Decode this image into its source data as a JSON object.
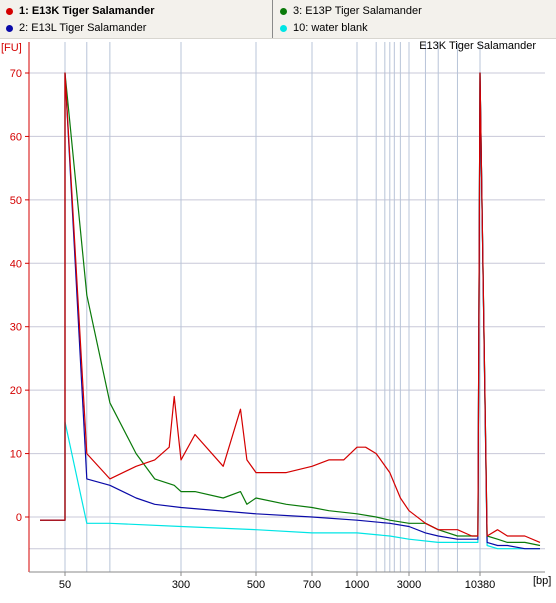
{
  "legend": [
    {
      "label": "1: E13K Tiger Salamander",
      "color": "#d40000",
      "bold": true
    },
    {
      "label": "2: E13L Tiger Salamander",
      "color": "#0a0aa8",
      "bold": false
    },
    {
      "label": "3: E13P Tiger Salamander",
      "color": "#0a7a0a",
      "bold": false
    },
    {
      "label": "10: water blank",
      "color": "#00e5e5",
      "bold": false
    }
  ],
  "chart_data": {
    "type": "line",
    "title": "E13K Tiger Salamander",
    "ylabel": "[FU]",
    "xlabel": "[bp]",
    "ylim": [
      -5,
      75
    ],
    "yticks": [
      0,
      10,
      20,
      30,
      40,
      50,
      60,
      70
    ],
    "xtick_labels": [
      "50",
      "300",
      "500",
      "700",
      "1000",
      "3000",
      "10380"
    ],
    "grid": true,
    "series": [
      {
        "name": "1: E13K Tiger Salamander",
        "color": "#d40000",
        "x": [
          "35",
          "40",
          "45",
          "50",
          "50",
          "70",
          "100",
          "150",
          "200",
          "250",
          "270",
          "300",
          "330",
          "400",
          "450",
          "470",
          "500",
          "550",
          "600",
          "700",
          "800",
          "900",
          "1000",
          "1200",
          "1500",
          "2000",
          "2500",
          "3000",
          "4000",
          "5000",
          "7000",
          "9000",
          "10000",
          "10380",
          "11000",
          "12000",
          "13000",
          "15000",
          "17000"
        ],
        "y": [
          -0.5,
          -0.5,
          -0.5,
          -0.5,
          70,
          10,
          6,
          8,
          9,
          11,
          19,
          9,
          13,
          8,
          17,
          9,
          7,
          7,
          7,
          8,
          9,
          9,
          11,
          11,
          10,
          7,
          3,
          1,
          -1,
          -2,
          -2,
          -3,
          -3,
          70,
          -3,
          -2,
          -3,
          -3,
          -4
        ]
      },
      {
        "name": "2: E13L Tiger Salamander",
        "color": "#0a0aa8",
        "x": [
          "35",
          "40",
          "45",
          "50",
          "50",
          "70",
          "100",
          "150",
          "200",
          "300",
          "500",
          "700",
          "1000",
          "2000",
          "3000",
          "4000",
          "5000",
          "7000",
          "10000",
          "10380",
          "11000",
          "12000",
          "13000",
          "15000",
          "17000"
        ],
        "y": [
          -0.5,
          -0.5,
          -0.5,
          -0.5,
          70,
          6,
          5,
          3,
          2,
          1.5,
          0.5,
          0,
          -0.5,
          -1,
          -1.5,
          -2.5,
          -3,
          -3.5,
          -3.5,
          70,
          -4,
          -4.5,
          -4.5,
          -5,
          -5
        ]
      },
      {
        "name": "3: E13P Tiger Salamander",
        "color": "#0a7a0a",
        "x": [
          "35",
          "40",
          "45",
          "50",
          "50",
          "70",
          "100",
          "150",
          "200",
          "270",
          "300",
          "330",
          "400",
          "450",
          "470",
          "500",
          "600",
          "700",
          "800",
          "1000",
          "1500",
          "2000",
          "3000",
          "4000",
          "5000",
          "7000",
          "10000",
          "10380",
          "11000",
          "12000",
          "13000",
          "15000",
          "17000"
        ],
        "y": [
          -0.5,
          -0.5,
          -0.5,
          -0.5,
          70,
          35,
          18,
          10,
          6,
          5,
          4,
          4,
          3,
          4,
          2,
          3,
          2,
          1.5,
          1,
          0.5,
          0,
          -0.5,
          -1,
          -1,
          -2,
          -3,
          -3,
          70,
          -3,
          -3.5,
          -4,
          -4,
          -4.5
        ]
      },
      {
        "name": "10: water blank",
        "color": "#00e5e5",
        "x": [
          "35",
          "40",
          "45",
          "50",
          "50",
          "70",
          "100",
          "300",
          "500",
          "700",
          "1000",
          "2000",
          "3000",
          "5000",
          "10000",
          "10380",
          "11000",
          "12000",
          "15000",
          "17000"
        ],
        "y": [
          -0.5,
          -0.5,
          -0.5,
          -0.5,
          15,
          -1,
          -1,
          -1.5,
          -2,
          -2.5,
          -2.5,
          -3,
          -3.5,
          -4,
          -4,
          70,
          -4.5,
          -5,
          -5,
          -5
        ]
      }
    ]
  }
}
